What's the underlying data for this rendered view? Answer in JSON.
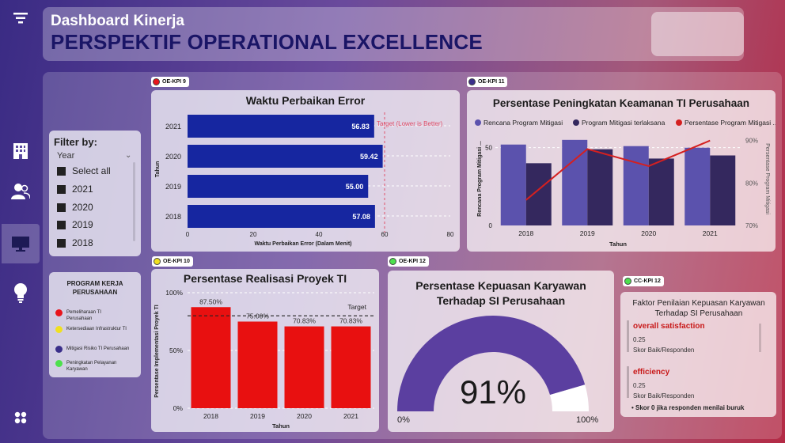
{
  "header": {
    "title": "Dashboard Kinerja",
    "subtitle": "PERSPEKTIF OPERATIONAL EXCELLENCE"
  },
  "sidebar": {
    "icons": [
      "filter-menu-icon",
      "building-icon",
      "users-icon",
      "monitor-icon",
      "lightbulb-icon",
      "apps-grid-icon"
    ],
    "active": "monitor-icon"
  },
  "filter": {
    "title": "Filter by:",
    "field": "Year",
    "options": [
      "Select all",
      "2021",
      "2020",
      "2019",
      "2018"
    ]
  },
  "program": {
    "title": "PROGRAM KERJA PERUSAHAAN",
    "items": [
      {
        "label": "Pemeliharaan TI Perusahaan",
        "color": "#e8141c"
      },
      {
        "label": "Ketersediaan Infrastruktur TI",
        "color": "#f0e020"
      },
      {
        "label": "Mitigasi Risiko TI Perusahaan",
        "color": "#3a2f8a"
      },
      {
        "label": "Peningkatan Pelayanan Karyawan",
        "color": "#4de04d"
      }
    ]
  },
  "tags": {
    "kpi9": "OE-KPI 9",
    "kpi11": "OE-KPI 11",
    "kpi10": "OE-KPI 10",
    "kpi12": "OE-KPI 12",
    "cc12": "CC-KPI 12"
  },
  "colors": {
    "navy": "#1626a0",
    "purple": "#5b52ad",
    "darkpurple": "#34285e",
    "red": "#e81010",
    "line": "#d42020"
  },
  "chart_data": [
    {
      "id": "waktu",
      "type": "bar",
      "orientation": "horizontal",
      "title": "Waktu Perbaikan Error",
      "categories": [
        "2021",
        "2020",
        "2019",
        "2018"
      ],
      "values": [
        56.83,
        59.42,
        55.0,
        57.08
      ],
      "value_labels": [
        "56.83",
        "59.42",
        "55.00",
        "57.08"
      ],
      "xlabel": "Waktu Perbaikan Error (Dalam Menit)",
      "ylabel": "Tahun",
      "xlim": [
        0,
        80
      ],
      "xticks": [
        "0",
        "20",
        "40",
        "60",
        "80"
      ],
      "target": 60,
      "target_label": "Target (Lower is Better)"
    },
    {
      "id": "keamanan",
      "type": "bar",
      "title": "Persentase Peningkatan Keamanan TI Perusahaan",
      "categories": [
        "2018",
        "2019",
        "2020",
        "2021"
      ],
      "series": [
        {
          "name": "Rencana Program Mitigasi",
          "values": [
            52,
            55,
            51,
            50
          ]
        },
        {
          "name": "Program Mitigasi terlaksana",
          "values": [
            40,
            49,
            43,
            45
          ]
        },
        {
          "name": "Persentase Program Mitigasi",
          "type": "line",
          "values": [
            76,
            88,
            84,
            90
          ]
        }
      ],
      "xlabel": "Tahun",
      "ylabel": "Rencana Program Mitigasi ...",
      "y2label": "Persentase Program Mitigasi",
      "ylim": [
        0,
        60
      ],
      "yticks": [
        "0",
        "50"
      ],
      "y2lim": [
        70,
        92
      ],
      "y2ticks": [
        "70%",
        "80%",
        "90%"
      ]
    },
    {
      "id": "realisasi",
      "type": "bar",
      "title": "Persentase Realisasi Proyek TI",
      "categories": [
        "2018",
        "2019",
        "2020",
        "2021"
      ],
      "values": [
        87.5,
        75.0,
        70.83,
        70.83
      ],
      "value_labels": [
        "87.50%",
        "75.00%",
        "70.83%",
        "70.83%"
      ],
      "ylabel": "Persentase Implementasi Proyek TI",
      "xlabel": "Tahun",
      "ylim": [
        0,
        100
      ],
      "yticks": [
        "0%",
        "50%",
        "100%"
      ],
      "target": 80,
      "target_label": "Target"
    },
    {
      "id": "kepuasan",
      "type": "gauge",
      "title": "Persentase Kepuasan Karyawan Terhadap SI Perusahaan",
      "value": 91,
      "value_label": "91%",
      "min_label": "0%",
      "max_label": "100%"
    }
  ],
  "faktor": {
    "title": "Faktor Penilaian Kepuasan Karyawan Terhadap SI Perusahaan",
    "items": [
      {
        "name": "overall satisfaction",
        "value": "0.25",
        "unit": "Skor Baik/Responden"
      },
      {
        "name": "efficiency",
        "value": "0.25",
        "unit": "Skor Baik/Responden"
      }
    ],
    "note": "• Skor 0 jika responden menilai buruk"
  }
}
